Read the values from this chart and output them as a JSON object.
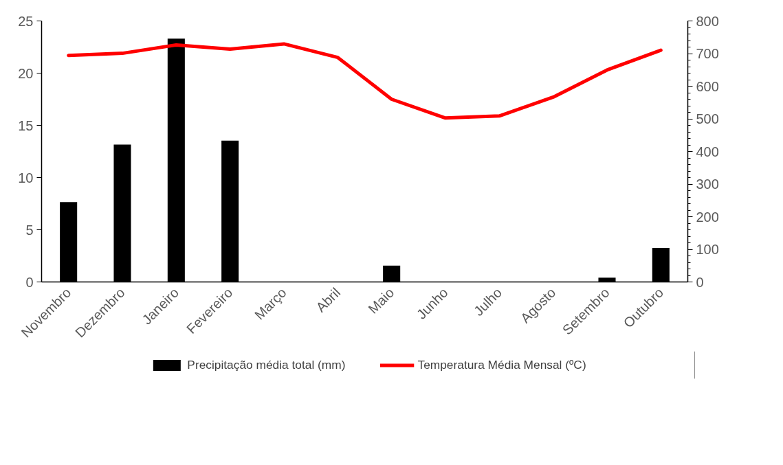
{
  "chart_data": {
    "type": "bar",
    "categories": [
      "Novembro",
      "Dezembro",
      "Janeiro",
      "Fevereiro",
      "Março",
      "Abril",
      "Maio",
      "Junho",
      "Julho",
      "Agosto",
      "Setembro",
      "Outubro"
    ],
    "series": [
      {
        "name": "Precipitação média total (mm)",
        "axis": "y2",
        "color": "#000000",
        "values": [
          245,
          421,
          746,
          433,
          0,
          1,
          50,
          1,
          1,
          0,
          13,
          104
        ]
      },
      {
        "name": "Temperatura Média Mensal (ºC)",
        "type": "line",
        "color": "#ff0000",
        "values": [
          21.7,
          21.9,
          22.7,
          22.3,
          22.8,
          21.5,
          17.5,
          15.7,
          15.9,
          17.7,
          20.3,
          22.2
        ]
      }
    ],
    "ylim": [
      0,
      25
    ],
    "yticks": [
      0,
      5,
      10,
      15,
      20,
      25
    ],
    "y2lim": [
      0,
      800
    ],
    "y2ticks": [
      0,
      100,
      200,
      300,
      400,
      500,
      600,
      700,
      800
    ],
    "grid": false,
    "legend": "bottom",
    "marker": "none",
    "line_style": "solid"
  }
}
